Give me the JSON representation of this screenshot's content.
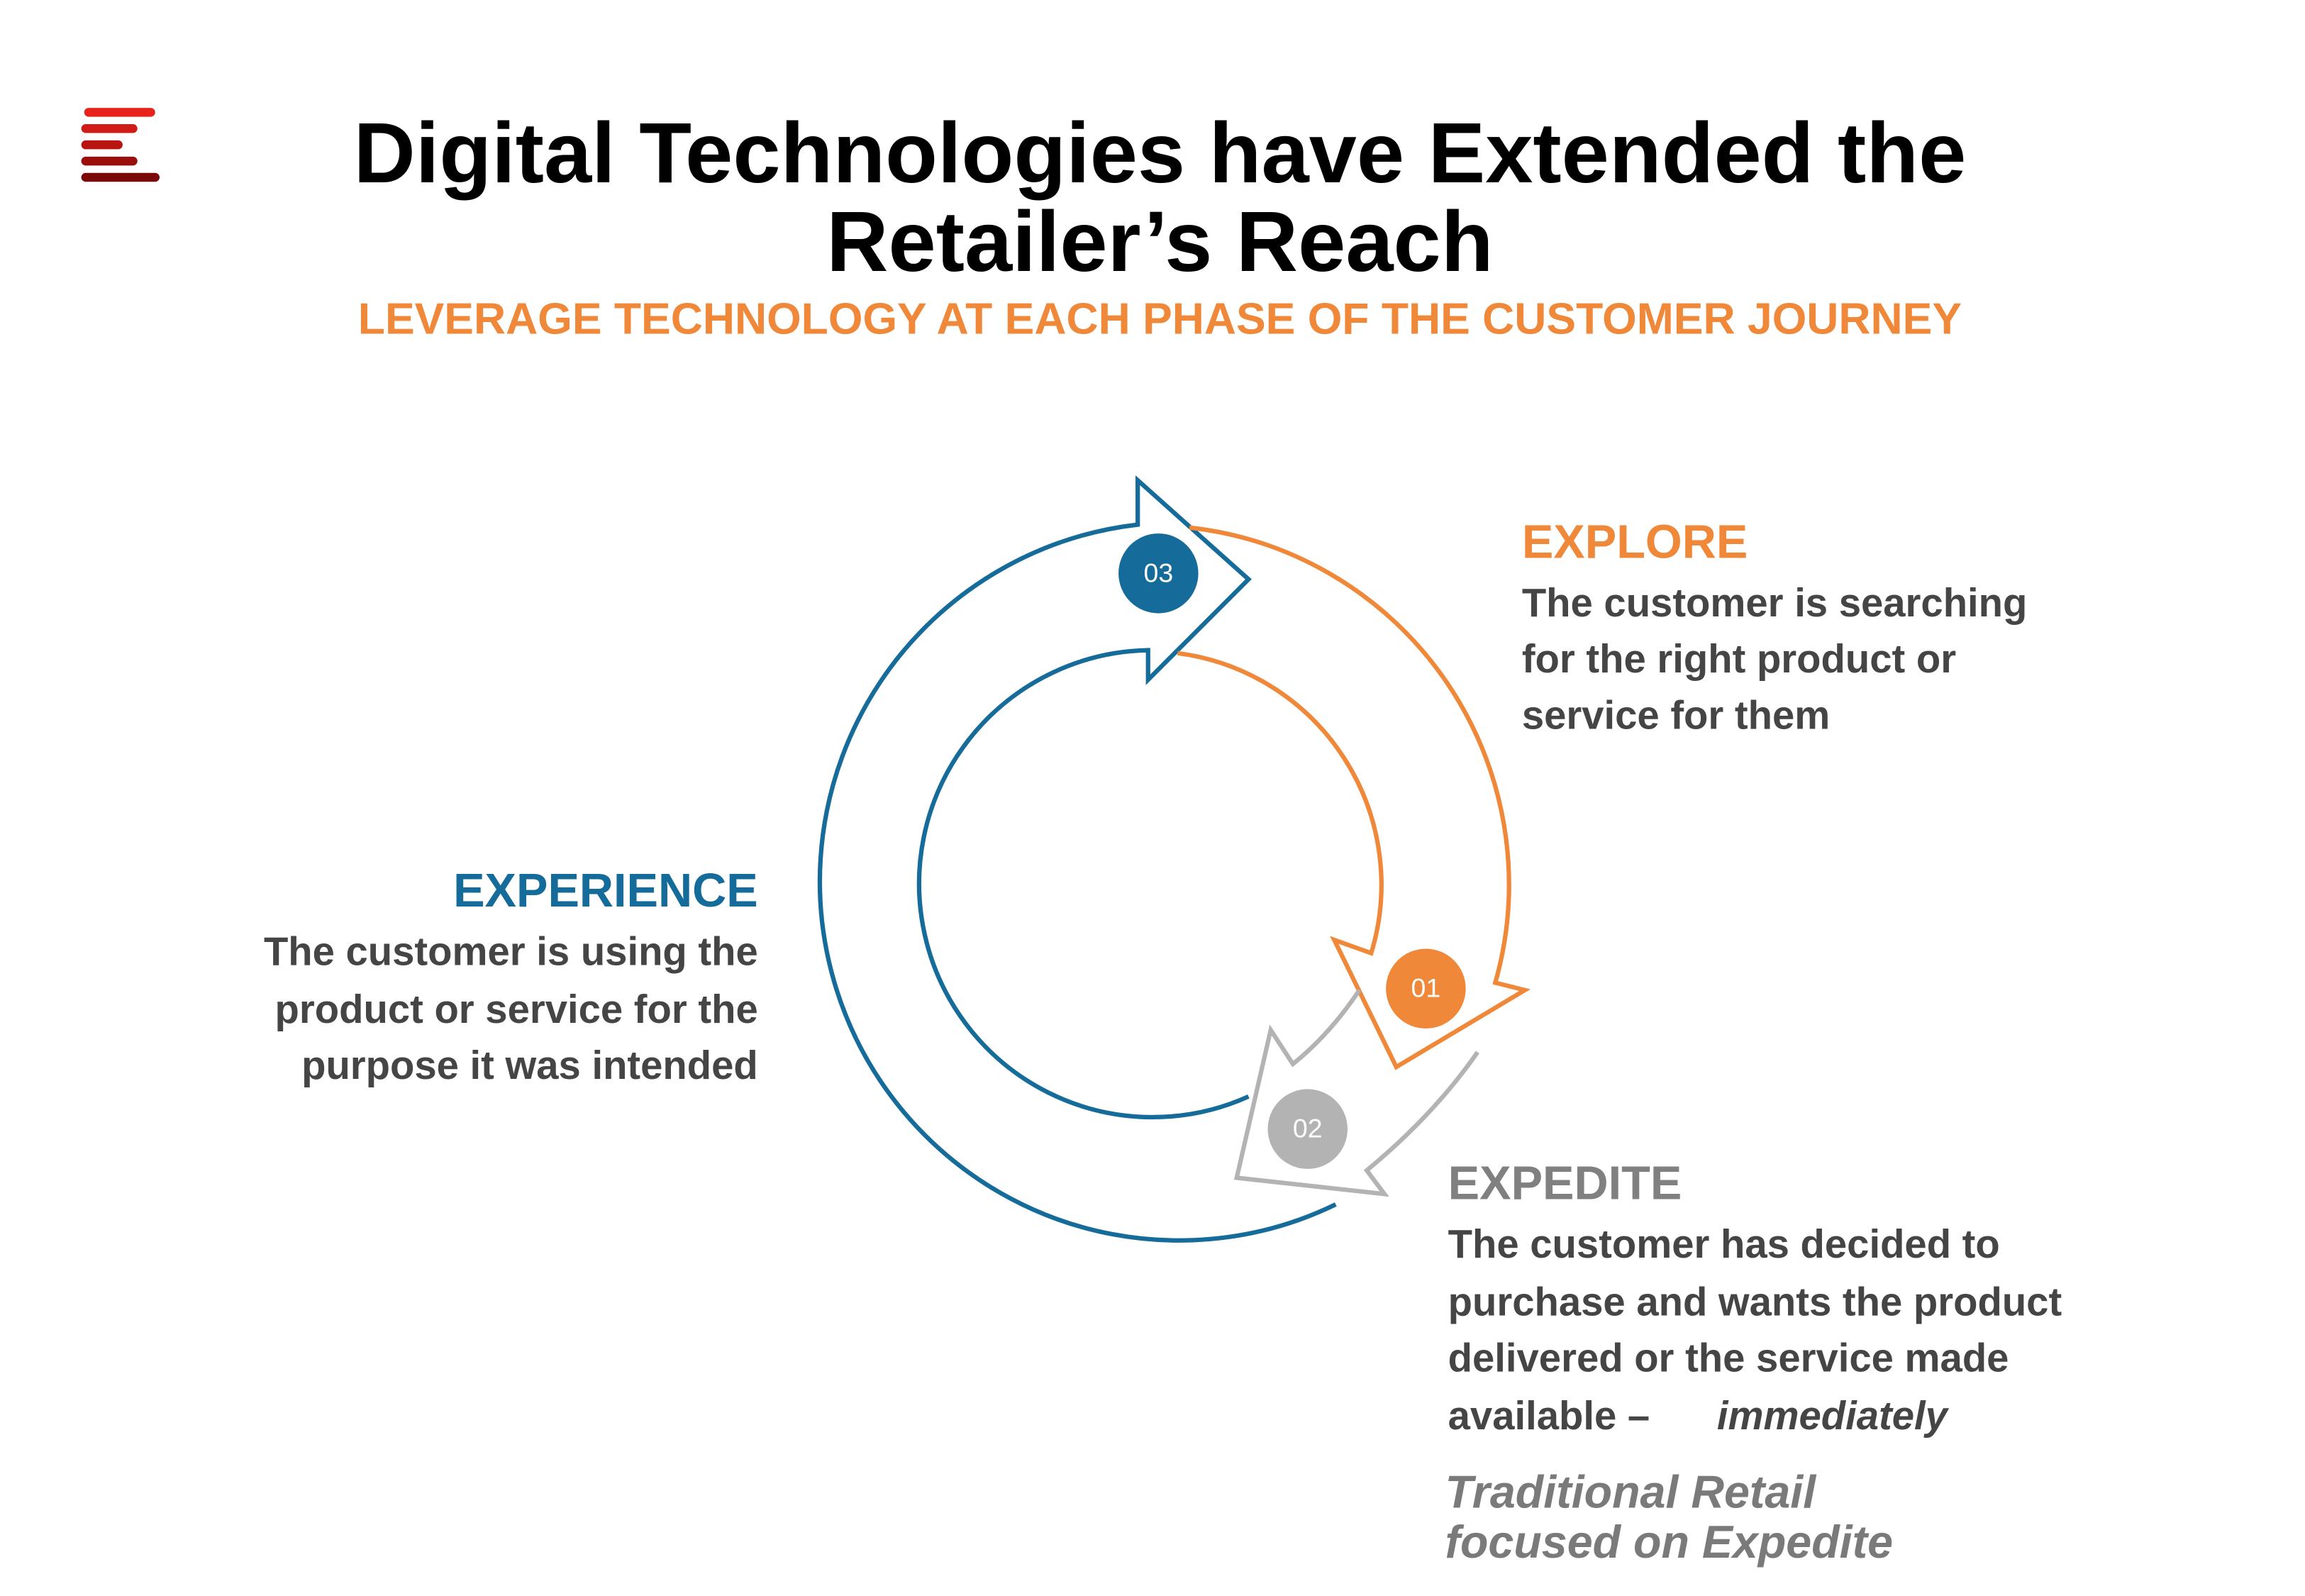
{
  "header": {
    "title_lines": [
      "Digital Technologies have Extended the",
      "Retailer’s Reach"
    ],
    "subtitle": "LEVERAGE TECHNOLOGY AT EACH PHASE OF THE CUSTOMER JOURNEY"
  },
  "phases": [
    {
      "number": "01",
      "name": "EXPLORE",
      "lines": [
        "The customer is searching",
        "for the right product or",
        "service for them"
      ]
    },
    {
      "number": "02",
      "name": "EXPEDITE",
      "lines": [
        "The customer has decided to",
        "purchase and wants the product",
        "delivered or the service made",
        "available –"
      ],
      "emphasis": "immediately"
    },
    {
      "number": "03",
      "name": "EXPERIENCE",
      "lines": [
        "The customer is using the",
        "product or service for the",
        "purpose it was intended"
      ]
    }
  ],
  "note": {
    "lines": [
      "Traditional Retail",
      "focused on Expedite"
    ]
  }
}
